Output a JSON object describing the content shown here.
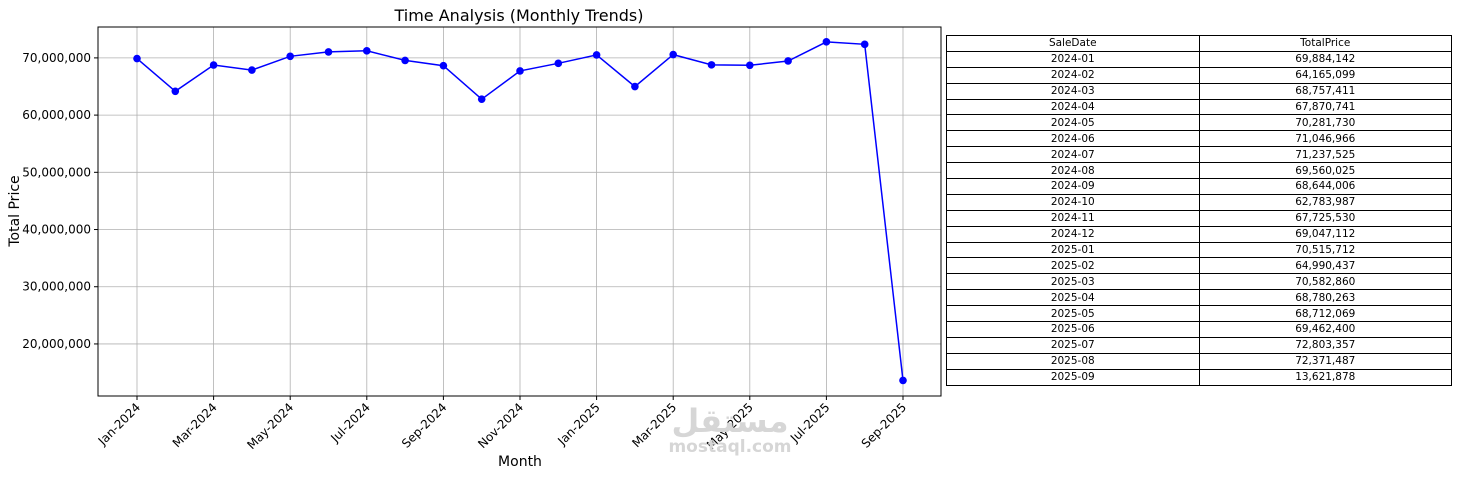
{
  "chart_data": {
    "type": "line",
    "title": "Time Analysis (Monthly Trends)",
    "xlabel": "Month",
    "ylabel": "Total Price",
    "grid": true,
    "line_color": "#0000ff",
    "ylim": [
      10900000,
      75400000
    ],
    "yticks": [
      20000000,
      30000000,
      40000000,
      50000000,
      60000000,
      70000000
    ],
    "ytick_labels": [
      "20,000,000",
      "30,000,000",
      "40,000,000",
      "50,000,000",
      "60,000,000",
      "70,000,000"
    ],
    "x": [
      "2024-01",
      "2024-02",
      "2024-03",
      "2024-04",
      "2024-05",
      "2024-06",
      "2024-07",
      "2024-08",
      "2024-09",
      "2024-10",
      "2024-11",
      "2024-12",
      "2025-01",
      "2025-02",
      "2025-03",
      "2025-04",
      "2025-05",
      "2025-06",
      "2025-07",
      "2025-08",
      "2025-09"
    ],
    "xtick_labels": [
      "Jan-2024",
      "Mar-2024",
      "May-2024",
      "Jul-2024",
      "Sep-2024",
      "Nov-2024",
      "Jan-2025",
      "Mar-2025",
      "May-2025",
      "Jul-2025",
      "Sep-2025"
    ],
    "values": [
      69884142,
      64165099,
      68757411,
      67870741,
      70281730,
      71046966,
      71237525,
      69560025,
      68644006,
      62783987,
      67725530,
      69047112,
      70515712,
      64990437,
      70582860,
      68780263,
      68712069,
      69462400,
      72803357,
      72371487,
      13621878
    ]
  },
  "table": {
    "headers": [
      "SaleDate",
      "TotalPrice"
    ],
    "rows": [
      [
        "2024-01",
        "69,884,142"
      ],
      [
        "2024-02",
        "64,165,099"
      ],
      [
        "2024-03",
        "68,757,411"
      ],
      [
        "2024-04",
        "67,870,741"
      ],
      [
        "2024-05",
        "70,281,730"
      ],
      [
        "2024-06",
        "71,046,966"
      ],
      [
        "2024-07",
        "71,237,525"
      ],
      [
        "2024-08",
        "69,560,025"
      ],
      [
        "2024-09",
        "68,644,006"
      ],
      [
        "2024-10",
        "62,783,987"
      ],
      [
        "2024-11",
        "67,725,530"
      ],
      [
        "2024-12",
        "69,047,112"
      ],
      [
        "2025-01",
        "70,515,712"
      ],
      [
        "2025-02",
        "64,990,437"
      ],
      [
        "2025-03",
        "70,582,860"
      ],
      [
        "2025-04",
        "68,780,263"
      ],
      [
        "2025-05",
        "68,712,069"
      ],
      [
        "2025-06",
        "69,462,400"
      ],
      [
        "2025-07",
        "72,803,357"
      ],
      [
        "2025-08",
        "72,371,487"
      ],
      [
        "2025-09",
        "13,621,878"
      ]
    ]
  },
  "watermark": {
    "logo": "مستقل",
    "text": "mostaql.com"
  }
}
